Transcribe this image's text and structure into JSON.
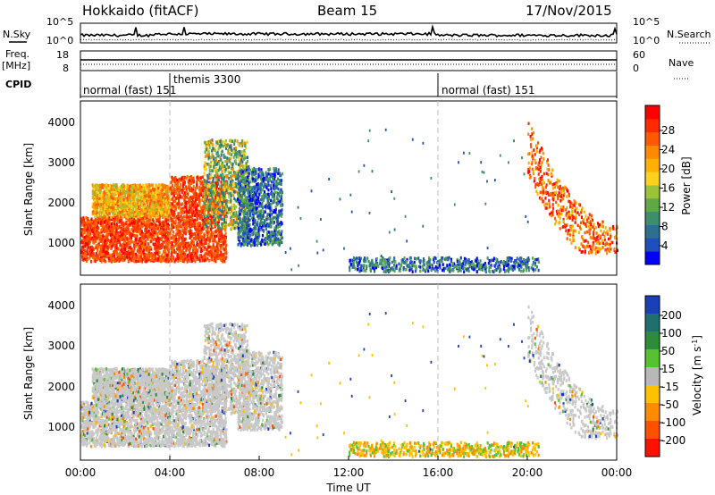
{
  "header": {
    "station": "Hokkaido (fitACF)",
    "beam": "Beam 15",
    "date": "17/Nov/2015"
  },
  "top_panels": {
    "nsky_label": "N.Sky",
    "nsky_ticks": [
      "10^5",
      "10^0"
    ],
    "nsearch_label": "N.Search",
    "nsearch_ticks": [
      "10^5",
      "10^0"
    ],
    "freq_label": "Freq.",
    "freq_unit": "[MHz]",
    "freq_ticks": [
      "18",
      "8"
    ],
    "nave_label": "Nave",
    "nave_ticks": [
      "60",
      "0"
    ],
    "cpid_label": "CPID",
    "modes": [
      {
        "label": "normal (fast) 151",
        "start": 0
      },
      {
        "label": "themis 3300",
        "start": 4
      },
      {
        "label": "normal (fast) 151",
        "start": 16
      }
    ]
  },
  "legend_power": {
    "title": "Power [dB]",
    "ticks": [
      "28",
      "24",
      "20",
      "16",
      "12",
      "8",
      "4"
    ],
    "colors": [
      "#0000ff",
      "#1f4fbf",
      "#2e6f8f",
      "#3c8f6a",
      "#5ea845",
      "#9cc23a",
      "#ffd21e",
      "#ffb000",
      "#ff8a00",
      "#ff5a00",
      "#ff2a00",
      "#ff0000"
    ]
  },
  "legend_velocity": {
    "title": "Velocity [m s",
    "title_sup": "-1",
    "title_close": "]",
    "ticks": [
      "200",
      "100",
      "50",
      "15",
      "-15",
      "-50",
      "-100",
      "-200"
    ],
    "colors": [
      "#1a3fb8",
      "#1f6f6f",
      "#2e8b3a",
      "#56c232",
      "#b8b8b8",
      "#ffc000",
      "#ff8c00",
      "#ff5000",
      "#ff1000"
    ]
  },
  "chart_data": [
    {
      "type": "heatmap",
      "panel": "power",
      "ylabel": "Slant Range [km]",
      "x_range": [
        0,
        24
      ],
      "ylim": [
        200,
        4500
      ],
      "y_ticks": [
        "1000",
        "2000",
        "3000",
        "4000"
      ],
      "regions": [
        {
          "x0": 0.0,
          "x1": 4.0,
          "y0": 500,
          "y1": 1600,
          "level": "high"
        },
        {
          "x0": 0.5,
          "x1": 4.0,
          "y0": 1600,
          "y1": 2400,
          "level": "medium"
        },
        {
          "x0": 4.0,
          "x1": 6.5,
          "y0": 500,
          "y1": 2600,
          "level": "high"
        },
        {
          "x0": 5.5,
          "x1": 7.5,
          "y0": 1300,
          "y1": 3500,
          "level": "mixed"
        },
        {
          "x0": 7.0,
          "x1": 9.0,
          "y0": 900,
          "y1": 2800,
          "level": "low"
        },
        {
          "x0": 12.0,
          "x1": 20.5,
          "y0": 250,
          "y1": 600,
          "level": "low"
        },
        {
          "x0": 20.0,
          "x1": 24.0,
          "y0": 700,
          "y1": 4000,
          "level": "arc"
        }
      ]
    },
    {
      "type": "heatmap",
      "panel": "velocity",
      "xlabel": "Time UT",
      "ylabel": "Slant Range [km]",
      "x_range": [
        0,
        24
      ],
      "ylim": [
        200,
        4500
      ],
      "y_ticks": [
        "1000",
        "2000",
        "3000",
        "4000"
      ],
      "x_ticks": [
        "00:00",
        "04:00",
        "08:00",
        "12:00",
        "16:00",
        "20:00",
        "00:00"
      ]
    }
  ]
}
